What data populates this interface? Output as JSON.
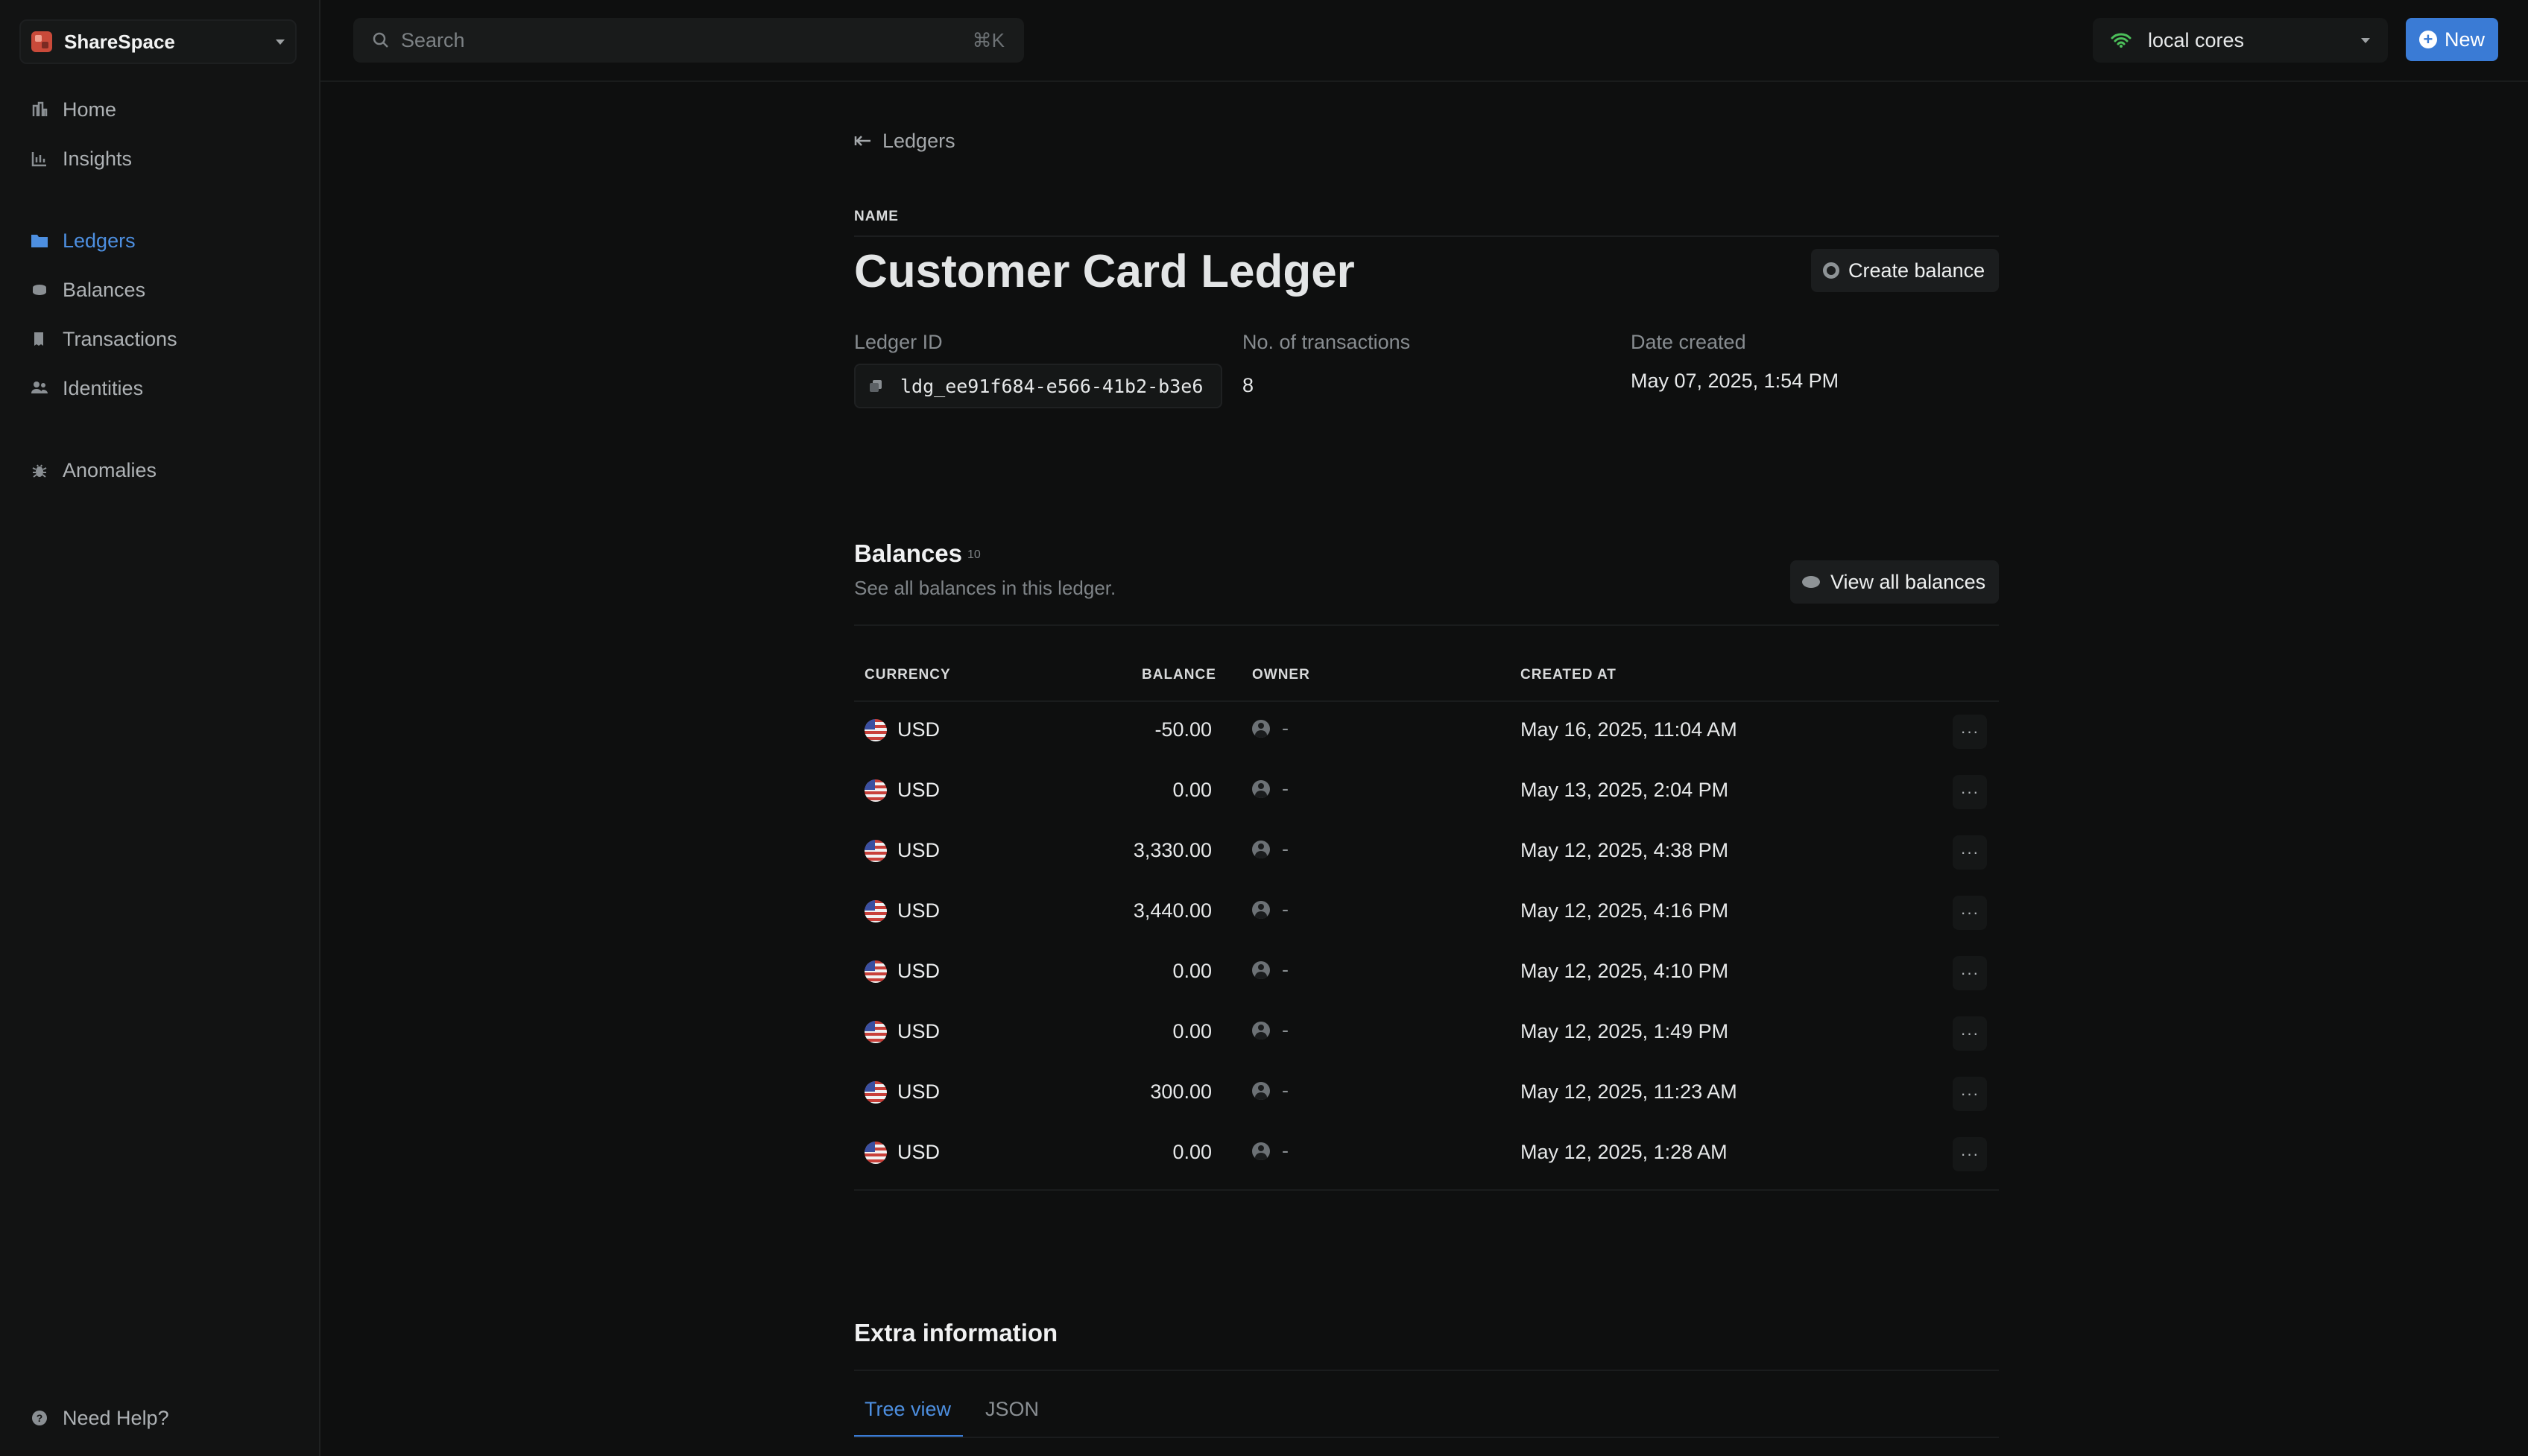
{
  "workspace": {
    "name": "ShareSpace"
  },
  "sidebar": {
    "items": [
      {
        "label": "Home",
        "icon": "home-icon"
      },
      {
        "label": "Insights",
        "icon": "bar-chart-icon"
      },
      {
        "label": "Ledgers",
        "icon": "folder-icon",
        "active": true
      },
      {
        "label": "Balances",
        "icon": "coins-icon"
      },
      {
        "label": "Transactions",
        "icon": "receipt-icon"
      },
      {
        "label": "Identities",
        "icon": "users-icon"
      },
      {
        "label": "Anomalies",
        "icon": "bug-icon"
      }
    ],
    "help": "Need Help?"
  },
  "topbar": {
    "search_placeholder": "Search",
    "search_shortcut": "⌘K",
    "environment": "local cores",
    "new_label": "New"
  },
  "ledger": {
    "back_label": "Ledgers",
    "name_label": "NAME",
    "title": "Customer Card Ledger",
    "create_balance_label": "Create balance",
    "id_label": "Ledger ID",
    "id_value": "ldg_ee91f684-e566-41b2-b3e6",
    "tx_label": "No. of transactions",
    "tx_value": "8",
    "date_label": "Date created",
    "date_value": "May 07, 2025, 1:54 PM"
  },
  "balances": {
    "title": "Balances",
    "count": "10",
    "subtitle": "See all balances in this ledger.",
    "view_all_label": "View all balances",
    "columns": {
      "currency": "CURRENCY",
      "balance": "BALANCE",
      "owner": "OWNER",
      "created_at": "CREATED AT"
    },
    "rows": [
      {
        "currency": "USD",
        "balance": "-50.00",
        "owner": "-",
        "created_at": "May 16, 2025, 11:04 AM"
      },
      {
        "currency": "USD",
        "balance": "0.00",
        "owner": "-",
        "created_at": "May 13, 2025, 2:04 PM"
      },
      {
        "currency": "USD",
        "balance": "3,330.00",
        "owner": "-",
        "created_at": "May 12, 2025, 4:38 PM"
      },
      {
        "currency": "USD",
        "balance": "3,440.00",
        "owner": "-",
        "created_at": "May 12, 2025, 4:16 PM"
      },
      {
        "currency": "USD",
        "balance": "0.00",
        "owner": "-",
        "created_at": "May 12, 2025, 4:10 PM"
      },
      {
        "currency": "USD",
        "balance": "0.00",
        "owner": "-",
        "created_at": "May 12, 2025, 1:49 PM"
      },
      {
        "currency": "USD",
        "balance": "300.00",
        "owner": "-",
        "created_at": "May 12, 2025, 11:23 AM"
      },
      {
        "currency": "USD",
        "balance": "0.00",
        "owner": "-",
        "created_at": "May 12, 2025, 1:28 AM"
      }
    ]
  },
  "extra": {
    "title": "Extra information",
    "tabs": [
      "Tree view",
      "JSON"
    ]
  },
  "colors": {
    "accent": "#3a7bd5",
    "background": "#0e0f0f",
    "wifi": "#4cc05a"
  }
}
